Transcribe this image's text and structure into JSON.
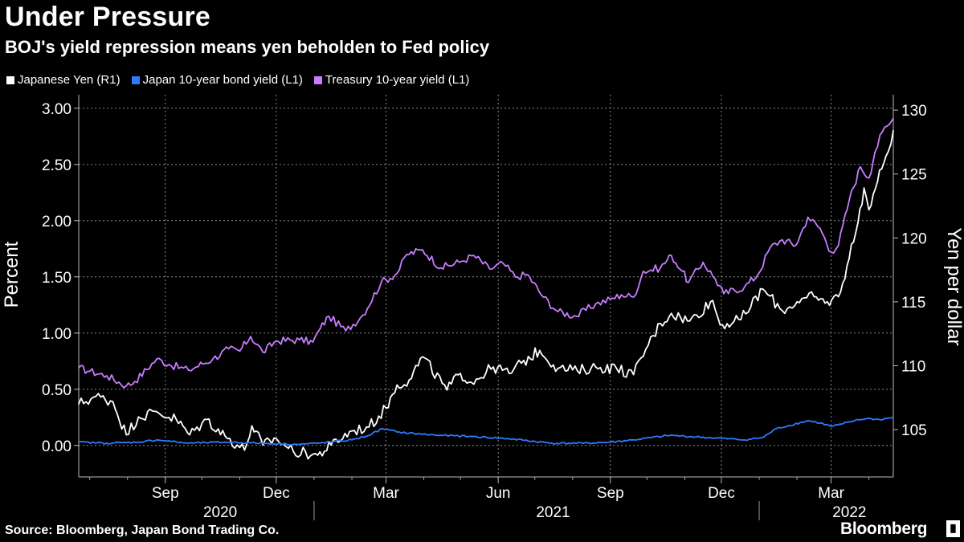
{
  "title": "Under Pressure",
  "subtitle": "BOJ's yield repression means yen beholden to Fed policy",
  "source": "Source: Bloomberg, Japan Bond Trading Co.",
  "brand": "Bloomberg",
  "brand_icon": "bloomberg-terminal-logo-icon",
  "chart_data": {
    "type": "line",
    "title": "Under Pressure",
    "subtitle": "BOJ's yield repression means yen beholden to Fed policy",
    "x_range": [
      "2020-06-22",
      "2022-04-21"
    ],
    "x_tick_labels": [
      "Sep",
      "Dec",
      "Mar",
      "Jun",
      "Sep",
      "Dec",
      "Mar"
    ],
    "x_tick_dates": [
      "2020-09-01",
      "2020-12-01",
      "2021-03-01",
      "2021-06-01",
      "2021-09-01",
      "2021-12-01",
      "2022-03-01"
    ],
    "x_year_labels": [
      "2020",
      "2021",
      "2022"
    ],
    "x_year_centers": [
      "2020-10-16",
      "2021-07-16",
      "2022-03-16"
    ],
    "x_year_separators": [
      "2021-01-01",
      "2022-01-01"
    ],
    "left_axis": {
      "label": "Percent",
      "min": -0.28,
      "max": 3.12,
      "ticks": [
        0,
        0.5,
        1,
        1.5,
        2,
        2.5,
        3
      ],
      "tick_labels": [
        "0.00",
        "0.50",
        "1.00",
        "1.50",
        "2.00",
        "2.50",
        "3.00"
      ]
    },
    "right_axis": {
      "label": "Yen per dollar",
      "min": 101.3,
      "max": 131.2,
      "ticks": [
        105,
        110,
        115,
        120,
        125,
        130
      ],
      "tick_labels": [
        "105",
        "110",
        "115",
        "120",
        "125",
        "130"
      ]
    },
    "grid": true,
    "legend": [
      {
        "name": "Japanese Yen (R1)",
        "color": "#ffffff"
      },
      {
        "name": "Japan 10-year bond yield (L1)",
        "color": "#2e7bff"
      },
      {
        "name": "Treasury 10-year yield (L1)",
        "color": "#c87dff"
      }
    ],
    "series": [
      {
        "name": "Treasury 10-year yield (L1)",
        "axis": "left",
        "color": "#c87dff",
        "points": [
          [
            "2020-06-22",
            0.69
          ],
          [
            "2020-07-01",
            0.66
          ],
          [
            "2020-07-15",
            0.62
          ],
          [
            "2020-07-31",
            0.53
          ],
          [
            "2020-08-07",
            0.57
          ],
          [
            "2020-08-25",
            0.77
          ],
          [
            "2020-09-04",
            0.72
          ],
          [
            "2020-09-20",
            0.67
          ],
          [
            "2020-10-10",
            0.77
          ],
          [
            "2020-10-23",
            0.86
          ],
          [
            "2020-11-01",
            0.84
          ],
          [
            "2020-11-10",
            0.97
          ],
          [
            "2020-11-20",
            0.83
          ],
          [
            "2020-12-01",
            0.93
          ],
          [
            "2020-12-20",
            0.94
          ],
          [
            "2020-12-31",
            0.92
          ],
          [
            "2021-01-06",
            1.04
          ],
          [
            "2021-01-13",
            1.15
          ],
          [
            "2021-01-27",
            1.02
          ],
          [
            "2021-02-10",
            1.16
          ],
          [
            "2021-02-25",
            1.45
          ],
          [
            "2021-03-10",
            1.53
          ],
          [
            "2021-03-18",
            1.7
          ],
          [
            "2021-03-31",
            1.74
          ],
          [
            "2021-04-15",
            1.58
          ],
          [
            "2021-04-30",
            1.63
          ],
          [
            "2021-05-12",
            1.69
          ],
          [
            "2021-05-25",
            1.57
          ],
          [
            "2021-06-05",
            1.62
          ],
          [
            "2021-06-15",
            1.5
          ],
          [
            "2021-06-25",
            1.52
          ],
          [
            "2021-07-08",
            1.32
          ],
          [
            "2021-07-20",
            1.19
          ],
          [
            "2021-08-04",
            1.15
          ],
          [
            "2021-08-20",
            1.26
          ],
          [
            "2021-09-01",
            1.3
          ],
          [
            "2021-09-10",
            1.34
          ],
          [
            "2021-09-20",
            1.32
          ],
          [
            "2021-09-28",
            1.55
          ],
          [
            "2021-10-12",
            1.58
          ],
          [
            "2021-10-21",
            1.69
          ],
          [
            "2021-10-30",
            1.55
          ],
          [
            "2021-11-04",
            1.45
          ],
          [
            "2021-11-16",
            1.63
          ],
          [
            "2021-11-26",
            1.48
          ],
          [
            "2021-12-03",
            1.35
          ],
          [
            "2021-12-20",
            1.41
          ],
          [
            "2021-12-31",
            1.52
          ],
          [
            "2022-01-10",
            1.76
          ],
          [
            "2022-01-20",
            1.83
          ],
          [
            "2022-01-31",
            1.78
          ],
          [
            "2022-02-10",
            2.03
          ],
          [
            "2022-02-20",
            1.93
          ],
          [
            "2022-03-01",
            1.72
          ],
          [
            "2022-03-07",
            1.78
          ],
          [
            "2022-03-16",
            2.19
          ],
          [
            "2022-03-25",
            2.48
          ],
          [
            "2022-04-01",
            2.38
          ],
          [
            "2022-04-06",
            2.61
          ],
          [
            "2022-04-12",
            2.79
          ],
          [
            "2022-04-18",
            2.86
          ],
          [
            "2022-04-21",
            2.91
          ]
        ]
      },
      {
        "name": "Japanese Yen (R1)",
        "axis": "right",
        "color": "#ffffff",
        "points": [
          [
            "2020-06-22",
            107.0
          ],
          [
            "2020-07-06",
            107.6
          ],
          [
            "2020-07-20",
            107.2
          ],
          [
            "2020-07-31",
            104.6
          ],
          [
            "2020-08-10",
            106.0
          ],
          [
            "2020-08-25",
            106.4
          ],
          [
            "2020-09-10",
            105.8
          ],
          [
            "2020-09-21",
            104.6
          ],
          [
            "2020-10-05",
            105.8
          ],
          [
            "2020-10-20",
            104.5
          ],
          [
            "2020-11-05",
            103.4
          ],
          [
            "2020-11-11",
            105.3
          ],
          [
            "2020-11-20",
            103.8
          ],
          [
            "2020-12-01",
            104.3
          ],
          [
            "2020-12-15",
            103.3
          ],
          [
            "2021-01-04",
            103.0
          ],
          [
            "2021-01-15",
            103.8
          ],
          [
            "2021-02-01",
            104.9
          ],
          [
            "2021-02-15",
            105.2
          ],
          [
            "2021-03-01",
            106.7
          ],
          [
            "2021-03-10",
            108.5
          ],
          [
            "2021-03-20",
            108.9
          ],
          [
            "2021-03-31",
            110.7
          ],
          [
            "2021-04-20",
            108.1
          ],
          [
            "2021-05-01",
            109.4
          ],
          [
            "2021-05-10",
            108.7
          ],
          [
            "2021-05-28",
            109.9
          ],
          [
            "2021-06-10",
            109.4
          ],
          [
            "2021-06-20",
            110.2
          ],
          [
            "2021-07-05",
            111.2
          ],
          [
            "2021-07-20",
            109.8
          ],
          [
            "2021-08-05",
            109.6
          ],
          [
            "2021-08-20",
            109.9
          ],
          [
            "2021-09-06",
            109.8
          ],
          [
            "2021-09-20",
            109.3
          ],
          [
            "2021-09-30",
            111.3
          ],
          [
            "2021-10-12",
            113.3
          ],
          [
            "2021-10-21",
            114.1
          ],
          [
            "2021-11-05",
            113.5
          ],
          [
            "2021-11-24",
            115.1
          ],
          [
            "2021-11-30",
            113.2
          ],
          [
            "2021-12-17",
            113.6
          ],
          [
            "2022-01-04",
            116.0
          ],
          [
            "2022-01-20",
            114.3
          ],
          [
            "2022-02-01",
            115.0
          ],
          [
            "2022-02-15",
            115.4
          ],
          [
            "2022-02-24",
            114.9
          ],
          [
            "2022-03-07",
            115.4
          ],
          [
            "2022-03-14",
            117.8
          ],
          [
            "2022-03-23",
            121.2
          ],
          [
            "2022-03-28",
            123.9
          ],
          [
            "2022-04-01",
            122.2
          ],
          [
            "2022-04-08",
            124.4
          ],
          [
            "2022-04-15",
            126.4
          ],
          [
            "2022-04-21",
            128.4
          ]
        ]
      },
      {
        "name": "Japan 10-year bond yield (L1)",
        "axis": "left",
        "color": "#2e7bff",
        "points": [
          [
            "2020-06-22",
            0.03
          ],
          [
            "2020-07-15",
            0.02
          ],
          [
            "2020-08-10",
            0.03
          ],
          [
            "2020-08-25",
            0.05
          ],
          [
            "2020-09-20",
            0.02
          ],
          [
            "2020-10-20",
            0.03
          ],
          [
            "2020-11-20",
            0.02
          ],
          [
            "2020-12-20",
            0.01
          ],
          [
            "2021-01-04",
            0.02
          ],
          [
            "2021-02-01",
            0.05
          ],
          [
            "2021-02-15",
            0.09
          ],
          [
            "2021-02-26",
            0.15
          ],
          [
            "2021-03-10",
            0.12
          ],
          [
            "2021-03-31",
            0.1
          ],
          [
            "2021-04-15",
            0.09
          ],
          [
            "2021-05-10",
            0.08
          ],
          [
            "2021-06-10",
            0.06
          ],
          [
            "2021-07-15",
            0.02
          ],
          [
            "2021-08-10",
            0.02
          ],
          [
            "2021-09-01",
            0.03
          ],
          [
            "2021-09-20",
            0.05
          ],
          [
            "2021-10-20",
            0.09
          ],
          [
            "2021-11-20",
            0.07
          ],
          [
            "2021-12-20",
            0.05
          ],
          [
            "2022-01-04",
            0.07
          ],
          [
            "2022-01-15",
            0.15
          ],
          [
            "2022-02-10",
            0.22
          ],
          [
            "2022-02-20",
            0.2
          ],
          [
            "2022-03-01",
            0.17
          ],
          [
            "2022-03-10",
            0.19
          ],
          [
            "2022-03-20",
            0.22
          ],
          [
            "2022-03-30",
            0.24
          ],
          [
            "2022-04-10",
            0.23
          ],
          [
            "2022-04-21",
            0.25
          ]
        ]
      }
    ]
  }
}
